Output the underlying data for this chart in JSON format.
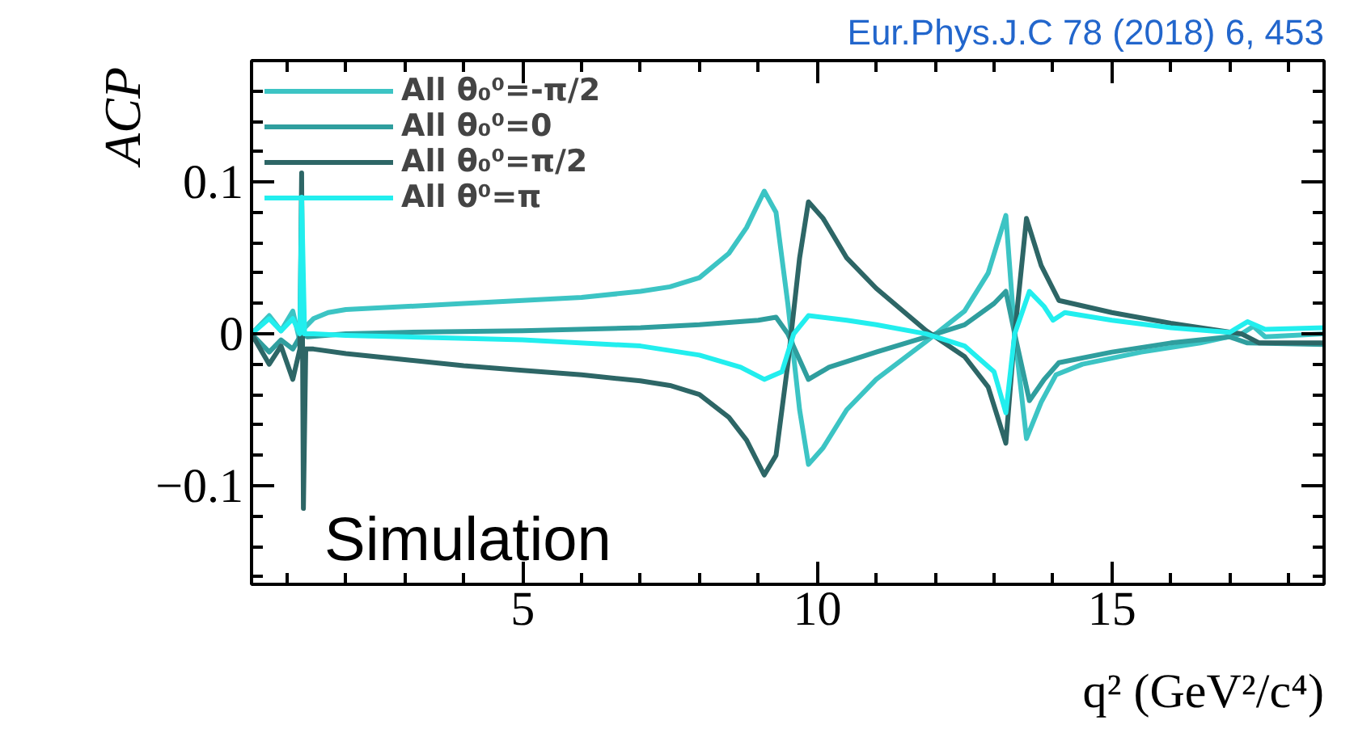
{
  "chart_data": {
    "type": "line",
    "xlabel": "q² (GeV²/c⁴)",
    "ylabel": "ACP",
    "annotations": [
      "Eur.Phys.J.C 78 (2018) 6, 453",
      "Simulation"
    ],
    "xlim": [
      0.4,
      18.6
    ],
    "ylim": [
      -0.165,
      0.18
    ],
    "xticks": [
      5,
      10,
      15
    ],
    "yticks": [
      {
        "value": -0.1,
        "label": "−0.1"
      },
      0,
      0.1
    ],
    "grid": false,
    "legend": "top left",
    "line_style": "solid",
    "marker": "none",
    "series": [
      {
        "name": "All θ₀⁰=-π/2",
        "color": "#3cc4c4",
        "x": [
          0.4,
          0.7,
          0.9,
          1.1,
          1.22,
          1.3,
          1.45,
          1.7,
          2,
          3,
          4,
          5,
          6,
          7,
          7.5,
          8,
          8.5,
          8.8,
          9.1,
          9.3,
          9.5,
          9.7,
          9.85,
          10.1,
          10.5,
          11,
          11.85,
          12.5,
          12.9,
          13.2,
          13.35,
          13.55,
          13.8,
          14.05,
          14.5,
          15.5,
          16.5,
          17.2,
          17.4,
          17.6,
          18.6
        ],
        "values": [
          0.0,
          0.012,
          0.002,
          0.015,
          -0.005,
          0.004,
          0.01,
          0.014,
          0.016,
          0.018,
          0.02,
          0.022,
          0.024,
          0.028,
          0.031,
          0.037,
          0.053,
          0.07,
          0.094,
          0.08,
          0.02,
          -0.05,
          -0.086,
          -0.075,
          -0.05,
          -0.03,
          -0.005,
          0.015,
          0.04,
          0.078,
          0.0,
          -0.069,
          -0.045,
          -0.027,
          -0.02,
          -0.012,
          -0.006,
          0.0,
          0.005,
          -0.002,
          0.0
        ]
      },
      {
        "name": "All θ₀⁰=0",
        "color": "#2f9e9e",
        "x": [
          0.4,
          0.7,
          0.9,
          1.1,
          1.25,
          1.35,
          2,
          3,
          5,
          7,
          8,
          9,
          9.3,
          9.5,
          9.85,
          10.2,
          11,
          11.85,
          12.5,
          13,
          13.2,
          13.35,
          13.6,
          13.85,
          14.1,
          15,
          16,
          17,
          17.3,
          18.6
        ],
        "values": [
          0.0,
          -0.012,
          -0.004,
          -0.01,
          0.0,
          -0.002,
          0.0,
          0.001,
          0.002,
          0.004,
          0.006,
          0.009,
          0.011,
          0.0,
          -0.03,
          -0.022,
          -0.012,
          -0.002,
          0.006,
          0.02,
          0.028,
          0.0,
          -0.044,
          -0.03,
          -0.019,
          -0.012,
          -0.006,
          -0.002,
          -0.006,
          -0.007
        ]
      },
      {
        "name": "All θ₀⁰=π/2",
        "color": "#2d6666",
        "x": [
          0.4,
          0.7,
          0.9,
          1.1,
          1.22,
          1.25,
          1.28,
          1.32,
          1.45,
          2,
          3,
          4,
          5,
          6,
          7,
          7.5,
          8,
          8.5,
          8.8,
          9.1,
          9.3,
          9.5,
          9.7,
          9.85,
          10.1,
          10.5,
          11,
          11.85,
          12.5,
          12.9,
          13.2,
          13.35,
          13.55,
          13.8,
          14.1,
          15,
          16,
          17.2,
          17.5,
          18.6
        ],
        "values": [
          0.0,
          -0.02,
          -0.008,
          -0.03,
          -0.01,
          0.106,
          -0.115,
          -0.01,
          -0.01,
          -0.013,
          -0.017,
          -0.021,
          -0.024,
          -0.027,
          -0.031,
          -0.034,
          -0.04,
          -0.055,
          -0.07,
          -0.093,
          -0.08,
          -0.02,
          0.05,
          0.087,
          0.076,
          0.05,
          0.03,
          0.002,
          -0.015,
          -0.035,
          -0.072,
          0.0,
          0.076,
          0.045,
          0.022,
          0.014,
          0.007,
          0.0,
          -0.006,
          -0.006
        ]
      },
      {
        "name": "All θ⁰=π",
        "color": "#22eeee",
        "x": [
          0.4,
          0.7,
          0.9,
          1.1,
          1.22,
          1.25,
          1.3,
          1.45,
          2,
          3,
          5,
          7,
          8,
          8.7,
          9.1,
          9.4,
          9.6,
          9.85,
          10.5,
          11,
          11.85,
          12.5,
          13,
          13.2,
          13.35,
          13.6,
          13.85,
          14.0,
          14.2,
          15,
          16,
          17,
          17.3,
          17.6,
          18.6
        ],
        "values": [
          0.0,
          0.01,
          0.002,
          0.01,
          0.0,
          0.09,
          0.0,
          0.0,
          -0.001,
          -0.002,
          -0.004,
          -0.008,
          -0.014,
          -0.022,
          -0.03,
          -0.025,
          0.0,
          0.012,
          0.009,
          0.006,
          0.0,
          -0.008,
          -0.025,
          -0.052,
          0.0,
          0.028,
          0.018,
          0.009,
          0.014,
          0.009,
          0.004,
          0.001,
          0.008,
          0.003,
          0.004
        ]
      }
    ]
  }
}
